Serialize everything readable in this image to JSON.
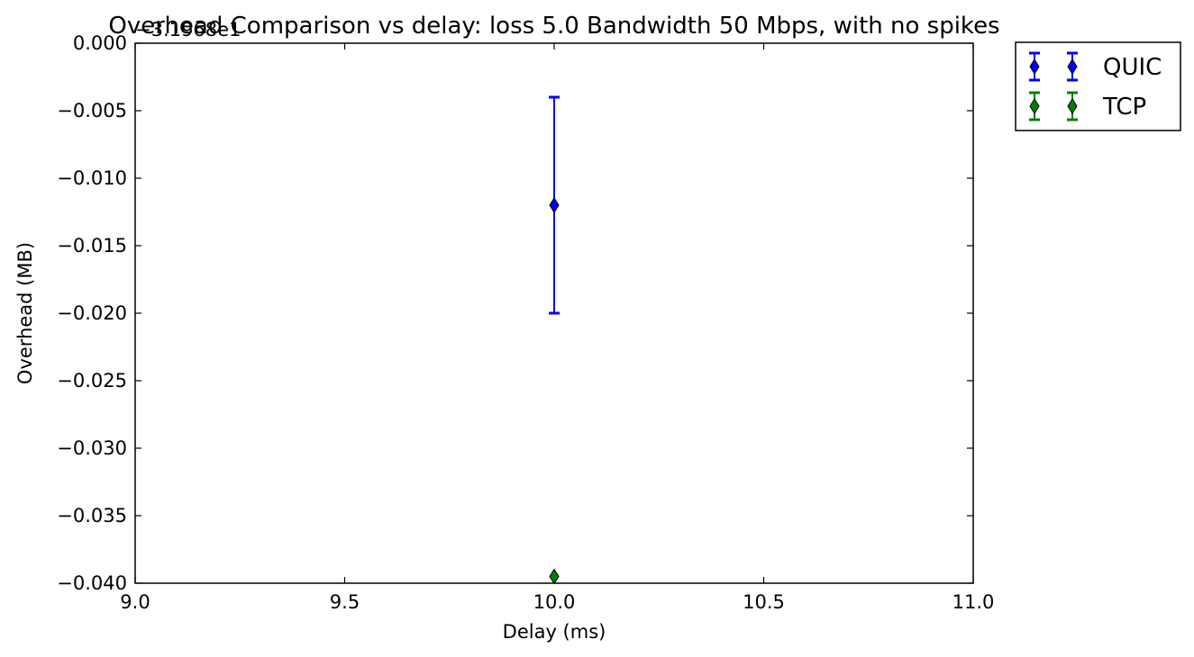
{
  "chart_data": {
    "type": "scatter",
    "title": "Overhead Comparison vs delay: loss 5.0 Bandwidth 50 Mbps, with no spikes",
    "xlabel": "Delay (ms)",
    "ylabel": "Overhead (MB)",
    "y_offset_label": "−3.1968e1",
    "xlim": [
      9.0,
      11.0
    ],
    "ylim": [
      -0.04,
      0.0
    ],
    "x_ticks": [
      9.0,
      9.5,
      10.0,
      10.5,
      11.0
    ],
    "x_tick_labels": [
      "9.0",
      "9.5",
      "10.0",
      "10.5",
      "11.0"
    ],
    "y_ticks": [
      0.0,
      -0.005,
      -0.01,
      -0.015,
      -0.02,
      -0.025,
      -0.03,
      -0.035,
      -0.04
    ],
    "y_tick_labels": [
      "0.000",
      "−0.005",
      "−0.010",
      "−0.015",
      "−0.020",
      "−0.025",
      "−0.030",
      "−0.035",
      "−0.040"
    ],
    "grid": false,
    "legend_position": "outside-top-right",
    "series": [
      {
        "name": "QUIC",
        "color": "#0000ff",
        "marker": "diamond",
        "points": [
          {
            "x": 10.0,
            "y": -0.012,
            "err_low": -0.02,
            "err_high": -0.004
          }
        ]
      },
      {
        "name": "TCP",
        "color": "#008000",
        "marker": "diamond",
        "points": [
          {
            "x": 10.0,
            "y": -0.0395,
            "err_low": -0.0395,
            "err_high": -0.0395
          }
        ]
      }
    ]
  }
}
